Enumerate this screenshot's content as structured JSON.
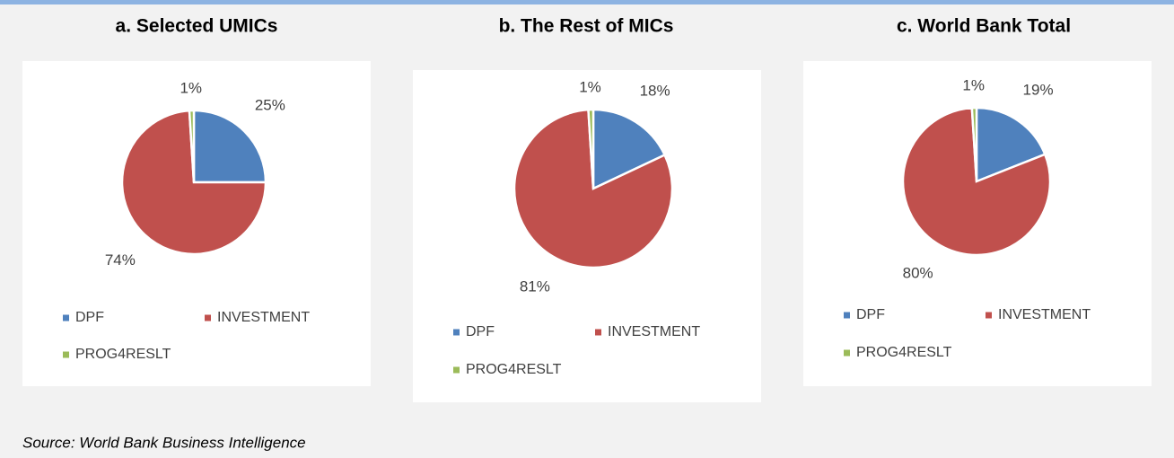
{
  "chart_data": [
    {
      "type": "pie",
      "title": "a. Selected UMICs",
      "categories": [
        "DPF",
        "INVESTMENT",
        "PROG4RESLT"
      ],
      "values": [
        25,
        74,
        1
      ],
      "value_labels": [
        "25%",
        "74%",
        "1%"
      ],
      "colors": [
        "#4f81bd",
        "#c0504d",
        "#9bbb59"
      ],
      "legend": "bottom"
    },
    {
      "type": "pie",
      "title": "b. The Rest of MICs",
      "categories": [
        "DPF",
        "INVESTMENT",
        "PROG4RESLT"
      ],
      "values": [
        18,
        81,
        1
      ],
      "value_labels": [
        "18%",
        "81%",
        "1%"
      ],
      "colors": [
        "#4f81bd",
        "#c0504d",
        "#9bbb59"
      ],
      "legend": "bottom"
    },
    {
      "type": "pie",
      "title": "c. World Bank Total",
      "categories": [
        "DPF",
        "INVESTMENT",
        "PROG4RESLT"
      ],
      "values": [
        19,
        80,
        1
      ],
      "value_labels": [
        "19%",
        "80%",
        "1%"
      ],
      "colors": [
        "#4f81bd",
        "#c0504d",
        "#9bbb59"
      ],
      "legend": "bottom"
    }
  ],
  "source": "Source: World Bank Business Intelligence"
}
